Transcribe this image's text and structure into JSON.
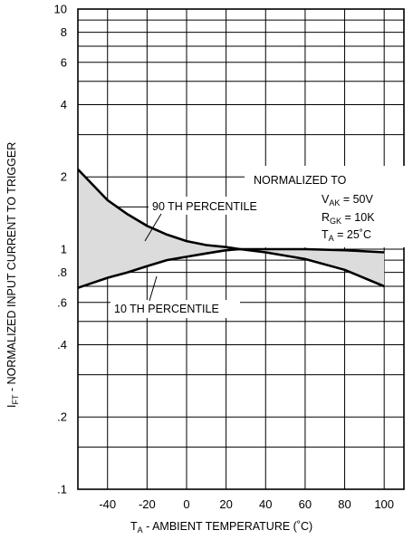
{
  "chart_data": {
    "type": "area",
    "xlabel_main": "T",
    "xlabel_sub": "A",
    "xlabel_rest": " - AMBIENT  TEMPERATURE (˚C)",
    "ylabel_main": "I",
    "ylabel_sub": "FT",
    "ylabel_rest": " - NORMALIZED INPUT CURRENT TO TRIGGER",
    "xlim": [
      -55,
      110
    ],
    "ylim": [
      0.1,
      10
    ],
    "yscale": "log",
    "grid": true,
    "x_ticks": [
      {
        "v": -40,
        "label": "-40"
      },
      {
        "v": -20,
        "label": "-20"
      },
      {
        "v": 0,
        "label": "0"
      },
      {
        "v": 20,
        "label": "20"
      },
      {
        "v": 40,
        "label": "40"
      },
      {
        "v": 60,
        "label": "60"
      },
      {
        "v": 80,
        "label": "80"
      },
      {
        "v": 100,
        "label": "100"
      }
    ],
    "y_ticks": [
      {
        "v": 0.1,
        "label": ".1"
      },
      {
        "v": 0.2,
        "label": ".2"
      },
      {
        "v": 0.4,
        "label": ".4"
      },
      {
        "v": 0.6,
        "label": ".6"
      },
      {
        "v": 0.8,
        "label": ".8"
      },
      {
        "v": 1,
        "label": "1"
      },
      {
        "v": 2,
        "label": "2"
      },
      {
        "v": 4,
        "label": "4"
      },
      {
        "v": 6,
        "label": "6"
      },
      {
        "v": 8,
        "label": "8"
      },
      {
        "v": 10,
        "label": "10"
      }
    ],
    "y_gridlines": [
      0.1,
      0.15,
      0.2,
      0.3,
      0.4,
      0.5,
      0.6,
      0.7,
      0.8,
      0.9,
      1,
      1.5,
      2,
      3,
      4,
      5,
      6,
      7,
      8,
      9,
      10
    ],
    "series": [
      {
        "name": "90 TH PERCENTILE",
        "x": [
          -55,
          -40,
          -30,
          -20,
          -10,
          0,
          10,
          20,
          27,
          40,
          60,
          80,
          100
        ],
        "y": [
          2.15,
          1.6,
          1.4,
          1.25,
          1.15,
          1.08,
          1.04,
          1.02,
          1.0,
          1.0,
          1.0,
          0.99,
          0.97
        ]
      },
      {
        "name": "10 TH PERCENTILE",
        "x": [
          -55,
          -40,
          -30,
          -20,
          -10,
          0,
          10,
          20,
          27,
          40,
          60,
          80,
          100
        ],
        "y": [
          0.69,
          0.76,
          0.8,
          0.85,
          0.9,
          0.93,
          0.96,
          0.99,
          1.0,
          0.97,
          0.91,
          0.82,
          0.7
        ]
      }
    ],
    "annotations": {
      "normalized_title": "NORMALIZED TO",
      "vak_main": "V",
      "vak_sub": "AK",
      "vak_val": " = 50V",
      "rgk_main": "R",
      "rgk_sub": "GK",
      "rgk_val": " = 10K",
      "ta_main": "T",
      "ta_sub": "A",
      "ta_val": "   = 25˚C"
    },
    "colors": {
      "fill": "#dcdcdc",
      "line": "#000000",
      "grid": "#000000"
    }
  }
}
